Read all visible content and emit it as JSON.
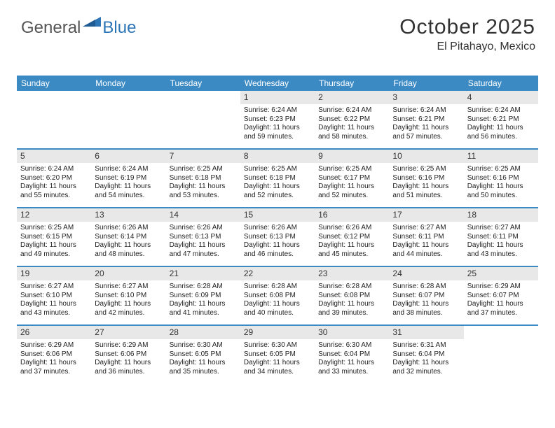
{
  "logo": {
    "text1": "General",
    "text2": "Blue"
  },
  "title": "October 2025",
  "location": "El Pitahayo, Mexico",
  "colors": {
    "header_bg": "#3b8ac4",
    "header_text": "#ffffff",
    "daynum_bg": "#e8e8e8",
    "row_border": "#3b8ac4",
    "logo_blue": "#2e75b6",
    "text": "#222222"
  },
  "day_headers": [
    "Sunday",
    "Monday",
    "Tuesday",
    "Wednesday",
    "Thursday",
    "Friday",
    "Saturday"
  ],
  "weeks": [
    [
      {
        "n": "",
        "sr": "",
        "ss": "",
        "dl": ""
      },
      {
        "n": "",
        "sr": "",
        "ss": "",
        "dl": ""
      },
      {
        "n": "",
        "sr": "",
        "ss": "",
        "dl": ""
      },
      {
        "n": "1",
        "sr": "Sunrise: 6:24 AM",
        "ss": "Sunset: 6:23 PM",
        "dl": "Daylight: 11 hours and 59 minutes."
      },
      {
        "n": "2",
        "sr": "Sunrise: 6:24 AM",
        "ss": "Sunset: 6:22 PM",
        "dl": "Daylight: 11 hours and 58 minutes."
      },
      {
        "n": "3",
        "sr": "Sunrise: 6:24 AM",
        "ss": "Sunset: 6:21 PM",
        "dl": "Daylight: 11 hours and 57 minutes."
      },
      {
        "n": "4",
        "sr": "Sunrise: 6:24 AM",
        "ss": "Sunset: 6:21 PM",
        "dl": "Daylight: 11 hours and 56 minutes."
      }
    ],
    [
      {
        "n": "5",
        "sr": "Sunrise: 6:24 AM",
        "ss": "Sunset: 6:20 PM",
        "dl": "Daylight: 11 hours and 55 minutes."
      },
      {
        "n": "6",
        "sr": "Sunrise: 6:24 AM",
        "ss": "Sunset: 6:19 PM",
        "dl": "Daylight: 11 hours and 54 minutes."
      },
      {
        "n": "7",
        "sr": "Sunrise: 6:25 AM",
        "ss": "Sunset: 6:18 PM",
        "dl": "Daylight: 11 hours and 53 minutes."
      },
      {
        "n": "8",
        "sr": "Sunrise: 6:25 AM",
        "ss": "Sunset: 6:18 PM",
        "dl": "Daylight: 11 hours and 52 minutes."
      },
      {
        "n": "9",
        "sr": "Sunrise: 6:25 AM",
        "ss": "Sunset: 6:17 PM",
        "dl": "Daylight: 11 hours and 52 minutes."
      },
      {
        "n": "10",
        "sr": "Sunrise: 6:25 AM",
        "ss": "Sunset: 6:16 PM",
        "dl": "Daylight: 11 hours and 51 minutes."
      },
      {
        "n": "11",
        "sr": "Sunrise: 6:25 AM",
        "ss": "Sunset: 6:16 PM",
        "dl": "Daylight: 11 hours and 50 minutes."
      }
    ],
    [
      {
        "n": "12",
        "sr": "Sunrise: 6:25 AM",
        "ss": "Sunset: 6:15 PM",
        "dl": "Daylight: 11 hours and 49 minutes."
      },
      {
        "n": "13",
        "sr": "Sunrise: 6:26 AM",
        "ss": "Sunset: 6:14 PM",
        "dl": "Daylight: 11 hours and 48 minutes."
      },
      {
        "n": "14",
        "sr": "Sunrise: 6:26 AM",
        "ss": "Sunset: 6:13 PM",
        "dl": "Daylight: 11 hours and 47 minutes."
      },
      {
        "n": "15",
        "sr": "Sunrise: 6:26 AM",
        "ss": "Sunset: 6:13 PM",
        "dl": "Daylight: 11 hours and 46 minutes."
      },
      {
        "n": "16",
        "sr": "Sunrise: 6:26 AM",
        "ss": "Sunset: 6:12 PM",
        "dl": "Daylight: 11 hours and 45 minutes."
      },
      {
        "n": "17",
        "sr": "Sunrise: 6:27 AM",
        "ss": "Sunset: 6:11 PM",
        "dl": "Daylight: 11 hours and 44 minutes."
      },
      {
        "n": "18",
        "sr": "Sunrise: 6:27 AM",
        "ss": "Sunset: 6:11 PM",
        "dl": "Daylight: 11 hours and 43 minutes."
      }
    ],
    [
      {
        "n": "19",
        "sr": "Sunrise: 6:27 AM",
        "ss": "Sunset: 6:10 PM",
        "dl": "Daylight: 11 hours and 43 minutes."
      },
      {
        "n": "20",
        "sr": "Sunrise: 6:27 AM",
        "ss": "Sunset: 6:10 PM",
        "dl": "Daylight: 11 hours and 42 minutes."
      },
      {
        "n": "21",
        "sr": "Sunrise: 6:28 AM",
        "ss": "Sunset: 6:09 PM",
        "dl": "Daylight: 11 hours and 41 minutes."
      },
      {
        "n": "22",
        "sr": "Sunrise: 6:28 AM",
        "ss": "Sunset: 6:08 PM",
        "dl": "Daylight: 11 hours and 40 minutes."
      },
      {
        "n": "23",
        "sr": "Sunrise: 6:28 AM",
        "ss": "Sunset: 6:08 PM",
        "dl": "Daylight: 11 hours and 39 minutes."
      },
      {
        "n": "24",
        "sr": "Sunrise: 6:28 AM",
        "ss": "Sunset: 6:07 PM",
        "dl": "Daylight: 11 hours and 38 minutes."
      },
      {
        "n": "25",
        "sr": "Sunrise: 6:29 AM",
        "ss": "Sunset: 6:07 PM",
        "dl": "Daylight: 11 hours and 37 minutes."
      }
    ],
    [
      {
        "n": "26",
        "sr": "Sunrise: 6:29 AM",
        "ss": "Sunset: 6:06 PM",
        "dl": "Daylight: 11 hours and 37 minutes."
      },
      {
        "n": "27",
        "sr": "Sunrise: 6:29 AM",
        "ss": "Sunset: 6:06 PM",
        "dl": "Daylight: 11 hours and 36 minutes."
      },
      {
        "n": "28",
        "sr": "Sunrise: 6:30 AM",
        "ss": "Sunset: 6:05 PM",
        "dl": "Daylight: 11 hours and 35 minutes."
      },
      {
        "n": "29",
        "sr": "Sunrise: 6:30 AM",
        "ss": "Sunset: 6:05 PM",
        "dl": "Daylight: 11 hours and 34 minutes."
      },
      {
        "n": "30",
        "sr": "Sunrise: 6:30 AM",
        "ss": "Sunset: 6:04 PM",
        "dl": "Daylight: 11 hours and 33 minutes."
      },
      {
        "n": "31",
        "sr": "Sunrise: 6:31 AM",
        "ss": "Sunset: 6:04 PM",
        "dl": "Daylight: 11 hours and 32 minutes."
      },
      {
        "n": "",
        "sr": "",
        "ss": "",
        "dl": ""
      }
    ]
  ]
}
